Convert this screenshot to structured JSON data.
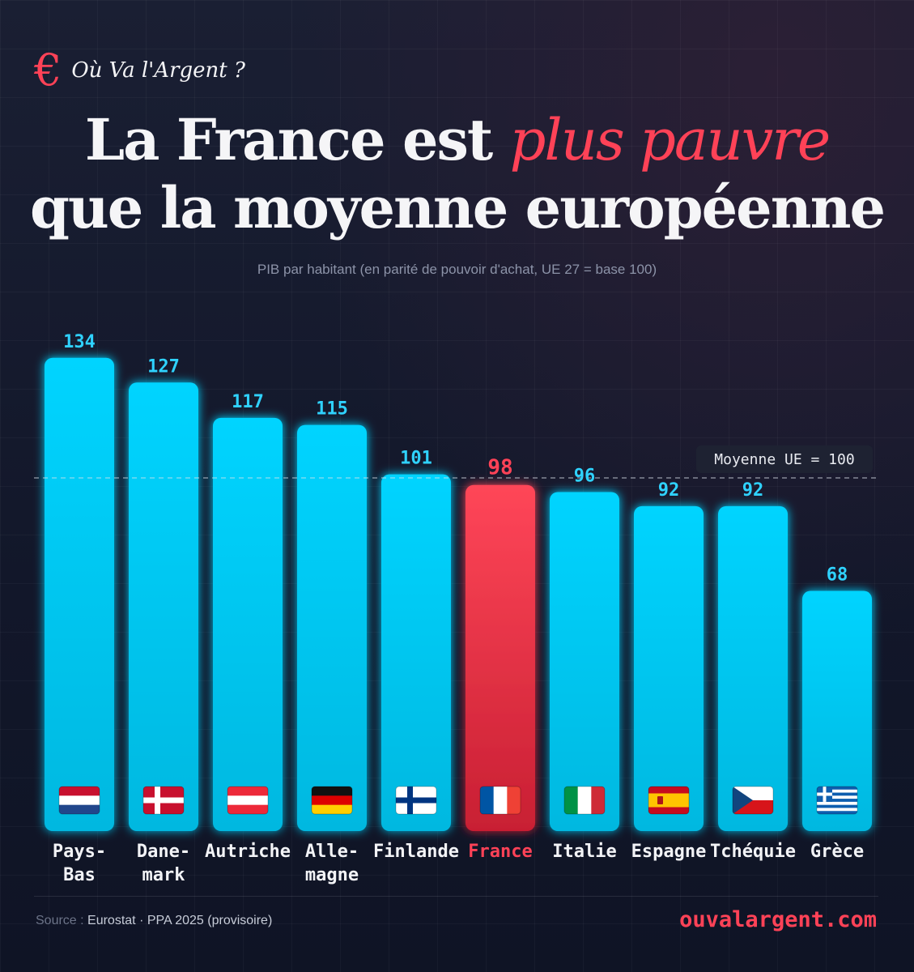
{
  "brand": {
    "name": "Où Va l'Argent ?",
    "icon": "euro-icon"
  },
  "title": {
    "part1": "La France est ",
    "accent": "plus pauvre",
    "line2": "que la moyenne européenne"
  },
  "subtitle": "PIB par habitant (en parité de pouvoir d'achat, UE 27 = base 100)",
  "footer": {
    "source_label": "Source : ",
    "source_text": "Eurostat · PPA 2025 (provisoire)",
    "site": "ouvalargent.com"
  },
  "colors": {
    "bar": "#00c8f0",
    "highlight": "#ff4257",
    "background": "#141a2e"
  },
  "chart_data": {
    "type": "bar",
    "categories": [
      "Pays-Bas",
      "Danemark",
      "Autriche",
      "Allemagne",
      "Finlande",
      "France",
      "Italie",
      "Espagne",
      "Tchéquie",
      "Grèce"
    ],
    "tick_labels": [
      [
        "Pays-",
        "Bas"
      ],
      [
        "Dane-",
        "mark"
      ],
      [
        "Autriche"
      ],
      [
        "Alle-",
        "magne"
      ],
      [
        "Finlande"
      ],
      [
        "France"
      ],
      [
        "Italie"
      ],
      [
        "Espagne"
      ],
      [
        "Tchéquie"
      ],
      [
        "Grèce"
      ]
    ],
    "values": [
      134,
      127,
      117,
      115,
      101,
      98,
      96,
      92,
      92,
      68
    ],
    "flags": [
      "flag-netherlands-icon",
      "flag-denmark-icon",
      "flag-austria-icon",
      "flag-germany-icon",
      "flag-finland-icon",
      "flag-france-icon",
      "flag-italy-icon",
      "flag-spain-icon",
      "flag-czechia-icon",
      "flag-greece-icon"
    ],
    "highlight": "France",
    "reference": {
      "value": 100,
      "label": "Moyenne UE = 100"
    },
    "ylim": [
      0,
      134
    ],
    "grid": false
  }
}
